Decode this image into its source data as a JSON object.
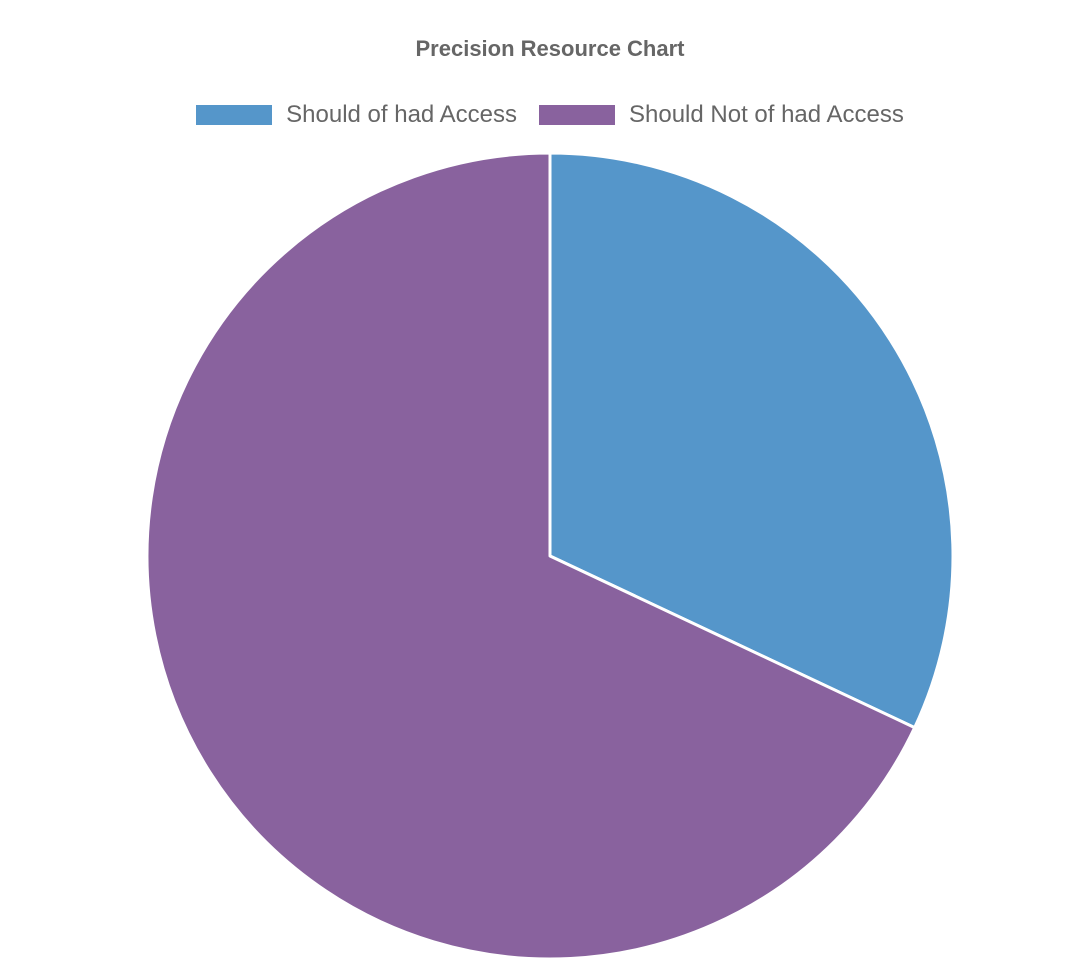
{
  "chart_data": {
    "type": "pie",
    "title": "Precision Resource Chart",
    "categories": [
      "Should of had Access",
      "Should Not of had Access"
    ],
    "values": [
      32,
      68
    ],
    "colors": [
      "#5596CA",
      "#89629E"
    ],
    "legend_position": "top"
  }
}
